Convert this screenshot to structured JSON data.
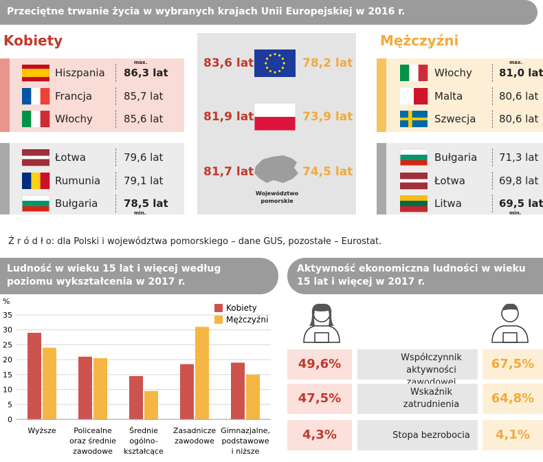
{
  "header": {
    "title": "Przeciętne trwanie życia w wybranych krajach Unii Europejskiej w 2016 r."
  },
  "women": {
    "heading": "Kobiety",
    "max_label": "max.",
    "min_label": "min.",
    "top": [
      {
        "country": "Hiszpania",
        "value": "86,3 lat"
      },
      {
        "country": "Francja",
        "value": "85,7 lat"
      },
      {
        "country": "Włochy",
        "value": "85,6 lat"
      }
    ],
    "bottom": [
      {
        "country": "Łotwa",
        "value": "79,6 lat"
      },
      {
        "country": "Rumunia",
        "value": "79,1 lat"
      },
      {
        "country": "Bułgaria",
        "value": "78,5 lat"
      }
    ]
  },
  "men": {
    "heading": "Mężczyźni",
    "max_label": "max.",
    "min_label": "min.",
    "top": [
      {
        "country": "Włochy",
        "value": "81,0 lat"
      },
      {
        "country": "Malta",
        "value": "80,6 lat"
      },
      {
        "country": "Szwecja",
        "value": "80,6 lat"
      }
    ],
    "bottom": [
      {
        "country": "Bułgaria",
        "value": "71,3 lat"
      },
      {
        "country": "Łotwa",
        "value": "69,8 lat"
      },
      {
        "country": "Litwa",
        "value": "69,5 lat"
      }
    ]
  },
  "center": {
    "rows": [
      {
        "women": "83,6 lat",
        "men": "78,2 lat"
      },
      {
        "women": "81,9 lat",
        "men": "73,9 lat"
      },
      {
        "women": "81,7 lat",
        "men": "74,5 lat"
      }
    ],
    "region_label": "Województwo pomorskie"
  },
  "source": "Ź r ó d ł o: dla Polski i województwa pomorskiego – dane GUS, pozostałe – Eurostat.",
  "chart_data": {
    "type": "bar",
    "title": "Ludność w wieku 15 lat i więcej według poziomu wykształcenia w 2017 r.",
    "y_label": "%",
    "categories": [
      "Wyższe",
      "Policealne oraz średnie zawodowe",
      "Średnie ogólno-kształcące",
      "Zasadnicze zawodowe",
      "Gimnazjalne, podstawowe i niższe"
    ],
    "series": [
      {
        "name": "Kobiety",
        "color": "#cd534f",
        "values": [
          29,
          21,
          14.5,
          18.5,
          19
        ]
      },
      {
        "name": "Mężczyźni",
        "color": "#f6b643",
        "values": [
          24,
          20.5,
          9.5,
          31,
          15
        ]
      }
    ],
    "ylim": [
      0,
      35
    ],
    "yticks": [
      0,
      5,
      10,
      15,
      20,
      25,
      30,
      35
    ],
    "grid": true,
    "legend": "top-right"
  },
  "activity": {
    "title": "Aktywność ekonomiczna ludności w wieku 15 lat i więcej w 2017 r.",
    "rows": [
      {
        "women": "49,6%",
        "label": "Współczynnik aktywności zawodowej",
        "men": "67,5%"
      },
      {
        "women": "47,5%",
        "label": "Wskaźnik zatrudnienia",
        "men": "64,8%"
      },
      {
        "women": "4,3%",
        "label": "Stopa bezrobocia",
        "men": "4,1%"
      }
    ]
  }
}
